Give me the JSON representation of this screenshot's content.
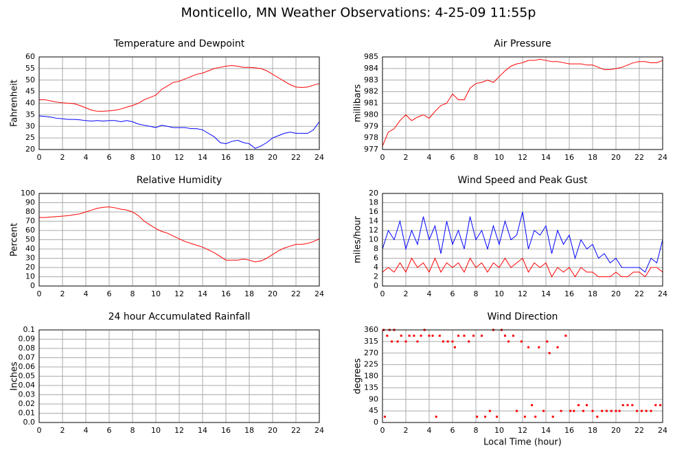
{
  "title": "Monticello, MN Weather Observations: 4-25-09 11:55p",
  "chart_data": [
    {
      "type": "line",
      "title": "Temperature and Dewpoint",
      "ylabel": "Fahrenheit",
      "x": [
        0,
        0.5,
        1,
        1.5,
        2,
        2.5,
        3,
        3.5,
        4,
        4.5,
        5,
        5.5,
        6,
        6.5,
        7,
        7.5,
        8,
        8.5,
        9,
        9.5,
        10,
        10.5,
        11,
        11.5,
        12,
        12.5,
        13,
        13.5,
        14,
        14.5,
        15,
        15.5,
        16,
        16.5,
        17,
        17.5,
        18,
        18.5,
        19,
        19.5,
        20,
        20.5,
        21,
        21.5,
        22,
        22.5,
        23,
        23.5,
        24
      ],
      "series": [
        {
          "color": "#ff0000",
          "values": [
            41.5,
            41.5,
            41,
            40.5,
            40.2,
            40,
            39.8,
            39,
            38,
            37,
            36.5,
            36.5,
            36.7,
            37,
            37.5,
            38.3,
            39,
            40,
            41.5,
            42.5,
            43.5,
            46,
            47.5,
            49,
            49.5,
            50.5,
            51.5,
            52.5,
            53,
            54,
            55,
            55.5,
            56,
            56.3,
            56,
            55.5,
            55.5,
            55.3,
            55,
            54,
            52.5,
            51,
            49.5,
            48,
            47,
            46.8,
            47,
            47.8,
            48.5
          ]
        },
        {
          "color": "#0000ff",
          "values": [
            34.5,
            34.3,
            34,
            33.5,
            33.3,
            33,
            33,
            32.8,
            32.5,
            32.3,
            32.5,
            32.3,
            32.5,
            32.5,
            32,
            32.5,
            32,
            31,
            30.5,
            30,
            29.5,
            30.5,
            30,
            29.5,
            29.5,
            29.5,
            29,
            29,
            28.5,
            27,
            25.5,
            23,
            22.5,
            23.5,
            24,
            23,
            22.5,
            20.5,
            21.5,
            23,
            25,
            26,
            27,
            27.5,
            27,
            27,
            27,
            28.5,
            32
          ]
        }
      ],
      "xlim": [
        0,
        24
      ],
      "xticks": [
        0,
        2,
        4,
        6,
        8,
        10,
        12,
        14,
        16,
        18,
        20,
        22,
        24
      ],
      "ylim": [
        20,
        60
      ],
      "yticks": [
        20,
        25,
        30,
        35,
        40,
        45,
        50,
        55,
        60
      ],
      "grid": true
    },
    {
      "type": "line",
      "title": "Air Pressure",
      "ylabel": "millibars",
      "x": [
        0,
        0.5,
        1,
        1.5,
        2,
        2.5,
        3,
        3.5,
        4,
        4.5,
        5,
        5.5,
        6,
        6.5,
        7,
        7.5,
        8,
        8.5,
        9,
        9.5,
        10,
        10.5,
        11,
        11.5,
        12,
        12.5,
        13,
        13.5,
        14,
        14.5,
        15,
        15.5,
        16,
        16.5,
        17,
        17.5,
        18,
        18.5,
        19,
        19.5,
        20,
        20.5,
        21,
        21.5,
        22,
        22.5,
        23,
        23.5,
        24
      ],
      "series": [
        {
          "color": "#ff0000",
          "values": [
            977.3,
            978.5,
            978.8,
            979.5,
            980,
            979.5,
            979.8,
            980,
            979.7,
            980.3,
            980.8,
            981,
            981.8,
            981.3,
            981.3,
            982.3,
            982.7,
            982.8,
            983,
            982.8,
            983.3,
            983.8,
            984.2,
            984.4,
            984.5,
            984.7,
            984.7,
            984.8,
            984.7,
            984.6,
            984.6,
            984.5,
            984.4,
            984.4,
            984.4,
            984.3,
            984.3,
            984.1,
            983.9,
            983.9,
            984,
            984.1,
            984.3,
            984.5,
            984.6,
            984.6,
            984.5,
            984.5,
            984.7
          ]
        }
      ],
      "xlim": [
        0,
        24
      ],
      "xticks": [
        0,
        2,
        4,
        6,
        8,
        10,
        12,
        14,
        16,
        18,
        20,
        22,
        24
      ],
      "ylim": [
        977,
        985
      ],
      "yticks": [
        977,
        978,
        979,
        980,
        981,
        982,
        983,
        984,
        985
      ],
      "grid": true
    },
    {
      "type": "line",
      "title": "Relative Humidity",
      "ylabel": "Percent",
      "x": [
        0,
        0.5,
        1,
        1.5,
        2,
        2.5,
        3,
        3.5,
        4,
        4.5,
        5,
        5.5,
        6,
        6.5,
        7,
        7.5,
        8,
        8.5,
        9,
        9.5,
        10,
        10.5,
        11,
        11.5,
        12,
        12.5,
        13,
        13.5,
        14,
        14.5,
        15,
        15.5,
        16,
        16.5,
        17,
        17.5,
        18,
        18.5,
        19,
        19.5,
        20,
        20.5,
        21,
        21.5,
        22,
        22.5,
        23,
        23.5,
        24
      ],
      "series": [
        {
          "color": "#ff0000",
          "values": [
            74,
            74,
            74.5,
            75,
            75.5,
            76,
            77,
            78,
            80,
            82,
            84,
            85,
            85.5,
            84.5,
            83,
            82,
            80,
            76,
            70,
            66,
            62,
            59,
            57,
            54,
            51,
            48,
            46,
            44,
            42,
            39,
            36,
            32,
            28,
            28,
            28,
            29,
            28,
            26,
            27,
            30,
            34,
            38,
            41,
            43,
            45,
            45,
            46,
            48,
            51
          ]
        }
      ],
      "xlim": [
        0,
        24
      ],
      "xticks": [
        0,
        2,
        4,
        6,
        8,
        10,
        12,
        14,
        16,
        18,
        20,
        22,
        24
      ],
      "ylim": [
        0,
        100
      ],
      "yticks": [
        0,
        10,
        20,
        30,
        40,
        50,
        60,
        70,
        80,
        90,
        100
      ],
      "grid": true
    },
    {
      "type": "line",
      "title": "Wind Speed and Peak Gust",
      "ylabel": "miles/hour",
      "x": [
        0,
        0.5,
        1,
        1.5,
        2,
        2.5,
        3,
        3.5,
        4,
        4.5,
        5,
        5.5,
        6,
        6.5,
        7,
        7.5,
        8,
        8.5,
        9,
        9.5,
        10,
        10.5,
        11,
        11.5,
        12,
        12.5,
        13,
        13.5,
        14,
        14.5,
        15,
        15.5,
        16,
        16.5,
        17,
        17.5,
        18,
        18.5,
        19,
        19.5,
        20,
        20.5,
        21,
        21.5,
        22,
        22.5,
        23,
        23.5,
        24
      ],
      "series": [
        {
          "color": "#0000ff",
          "values": [
            8,
            12,
            10,
            14,
            8,
            12,
            9,
            15,
            10,
            13,
            7,
            14,
            9,
            12,
            8,
            15,
            10,
            12,
            8,
            13,
            9,
            14,
            10,
            11,
            16,
            8,
            12,
            11,
            13,
            7,
            12,
            9,
            11,
            6,
            10,
            8,
            9,
            6,
            7,
            5,
            6,
            4,
            4,
            4,
            4,
            3,
            6,
            5,
            10
          ]
        },
        {
          "color": "#ff0000",
          "values": [
            3,
            4,
            3,
            5,
            3,
            6,
            4,
            5,
            3,
            6,
            3,
            5,
            4,
            5,
            3,
            6,
            4,
            5,
            3,
            5,
            4,
            6,
            4,
            5,
            6,
            3,
            5,
            4,
            5,
            2,
            4,
            3,
            4,
            2,
            4,
            3,
            3,
            2,
            2,
            2,
            3,
            2,
            2,
            3,
            3,
            2,
            4,
            4,
            3
          ]
        }
      ],
      "xlim": [
        0,
        24
      ],
      "xticks": [
        0,
        2,
        4,
        6,
        8,
        10,
        12,
        14,
        16,
        18,
        20,
        22,
        24
      ],
      "ylim": [
        0,
        20
      ],
      "yticks": [
        0,
        2,
        4,
        6,
        8,
        10,
        12,
        14,
        16,
        18,
        20
      ],
      "grid": true
    },
    {
      "type": "line",
      "title": "24 hour Accumulated Rainfall",
      "ylabel": "Inches",
      "x": [
        0,
        24
      ],
      "series": [
        {
          "color": "#ff0000",
          "values": [
            0,
            0
          ]
        }
      ],
      "xlim": [
        0,
        24
      ],
      "xticks": [
        0,
        2,
        4,
        6,
        8,
        10,
        12,
        14,
        16,
        18,
        20,
        22,
        24
      ],
      "ylim": [
        0,
        0.1
      ],
      "yticks": [
        {
          "value": 0,
          "label": "0.0"
        },
        0.01,
        0.02,
        0.03,
        0.04,
        0.05,
        0.06,
        0.07,
        0.08,
        0.09,
        0.1
      ],
      "grid": true
    },
    {
      "type": "scatter",
      "title": "Wind Direction",
      "ylabel": "degrees",
      "xlabel": "Local Time (hour)",
      "x": [
        0.1,
        0.2,
        0.4,
        0.6,
        0.8,
        1.0,
        1.3,
        1.6,
        2.0,
        2.3,
        2.7,
        3.0,
        3.3,
        3.6,
        4.0,
        4.3,
        4.6,
        4.9,
        5.2,
        5.6,
        6.0,
        6.2,
        6.5,
        7.0,
        7.4,
        7.8,
        8.1,
        8.5,
        8.8,
        9.2,
        9.5,
        9.8,
        10.2,
        10.5,
        10.8,
        11.2,
        11.5,
        11.9,
        12.2,
        12.5,
        12.8,
        13.1,
        13.4,
        13.8,
        14.1,
        14.3,
        14.6,
        15.0,
        15.3,
        15.7,
        16.1,
        16.4,
        16.8,
        17.2,
        17.5,
        18.0,
        18.4,
        18.8,
        19.2,
        19.6,
        20.0,
        20.3,
        20.6,
        21.0,
        21.4,
        21.8,
        22.2,
        22.6,
        23.0,
        23.4,
        23.8
      ],
      "series": [
        {
          "color": "#ff0000",
          "values": [
            360,
            22.5,
            337.5,
            360,
            315,
            360,
            315,
            337.5,
            315,
            337.5,
            337.5,
            315,
            337.5,
            360,
            337.5,
            337.5,
            22.5,
            337.5,
            315,
            315,
            315,
            292.5,
            337.5,
            337.5,
            315,
            337.5,
            22.5,
            337.5,
            22.5,
            45,
            360,
            22.5,
            360,
            337.5,
            315,
            337.5,
            45,
            315,
            22.5,
            292.5,
            67.5,
            22.5,
            292.5,
            45,
            315,
            270,
            22.5,
            292.5,
            45,
            337.5,
            45,
            45,
            67.5,
            45,
            67.5,
            45,
            22.5,
            45,
            45,
            45,
            45,
            45,
            67.5,
            67.5,
            67.5,
            45,
            45,
            45,
            45,
            67.5,
            67.5
          ]
        }
      ],
      "xlim": [
        0,
        24
      ],
      "xticks": [
        0,
        2,
        4,
        6,
        8,
        10,
        12,
        14,
        16,
        18,
        20,
        22,
        24
      ],
      "ylim": [
        0,
        360
      ],
      "yticks": [
        0,
        45,
        90,
        135,
        180,
        225,
        270,
        315,
        360
      ],
      "grid": true
    }
  ]
}
